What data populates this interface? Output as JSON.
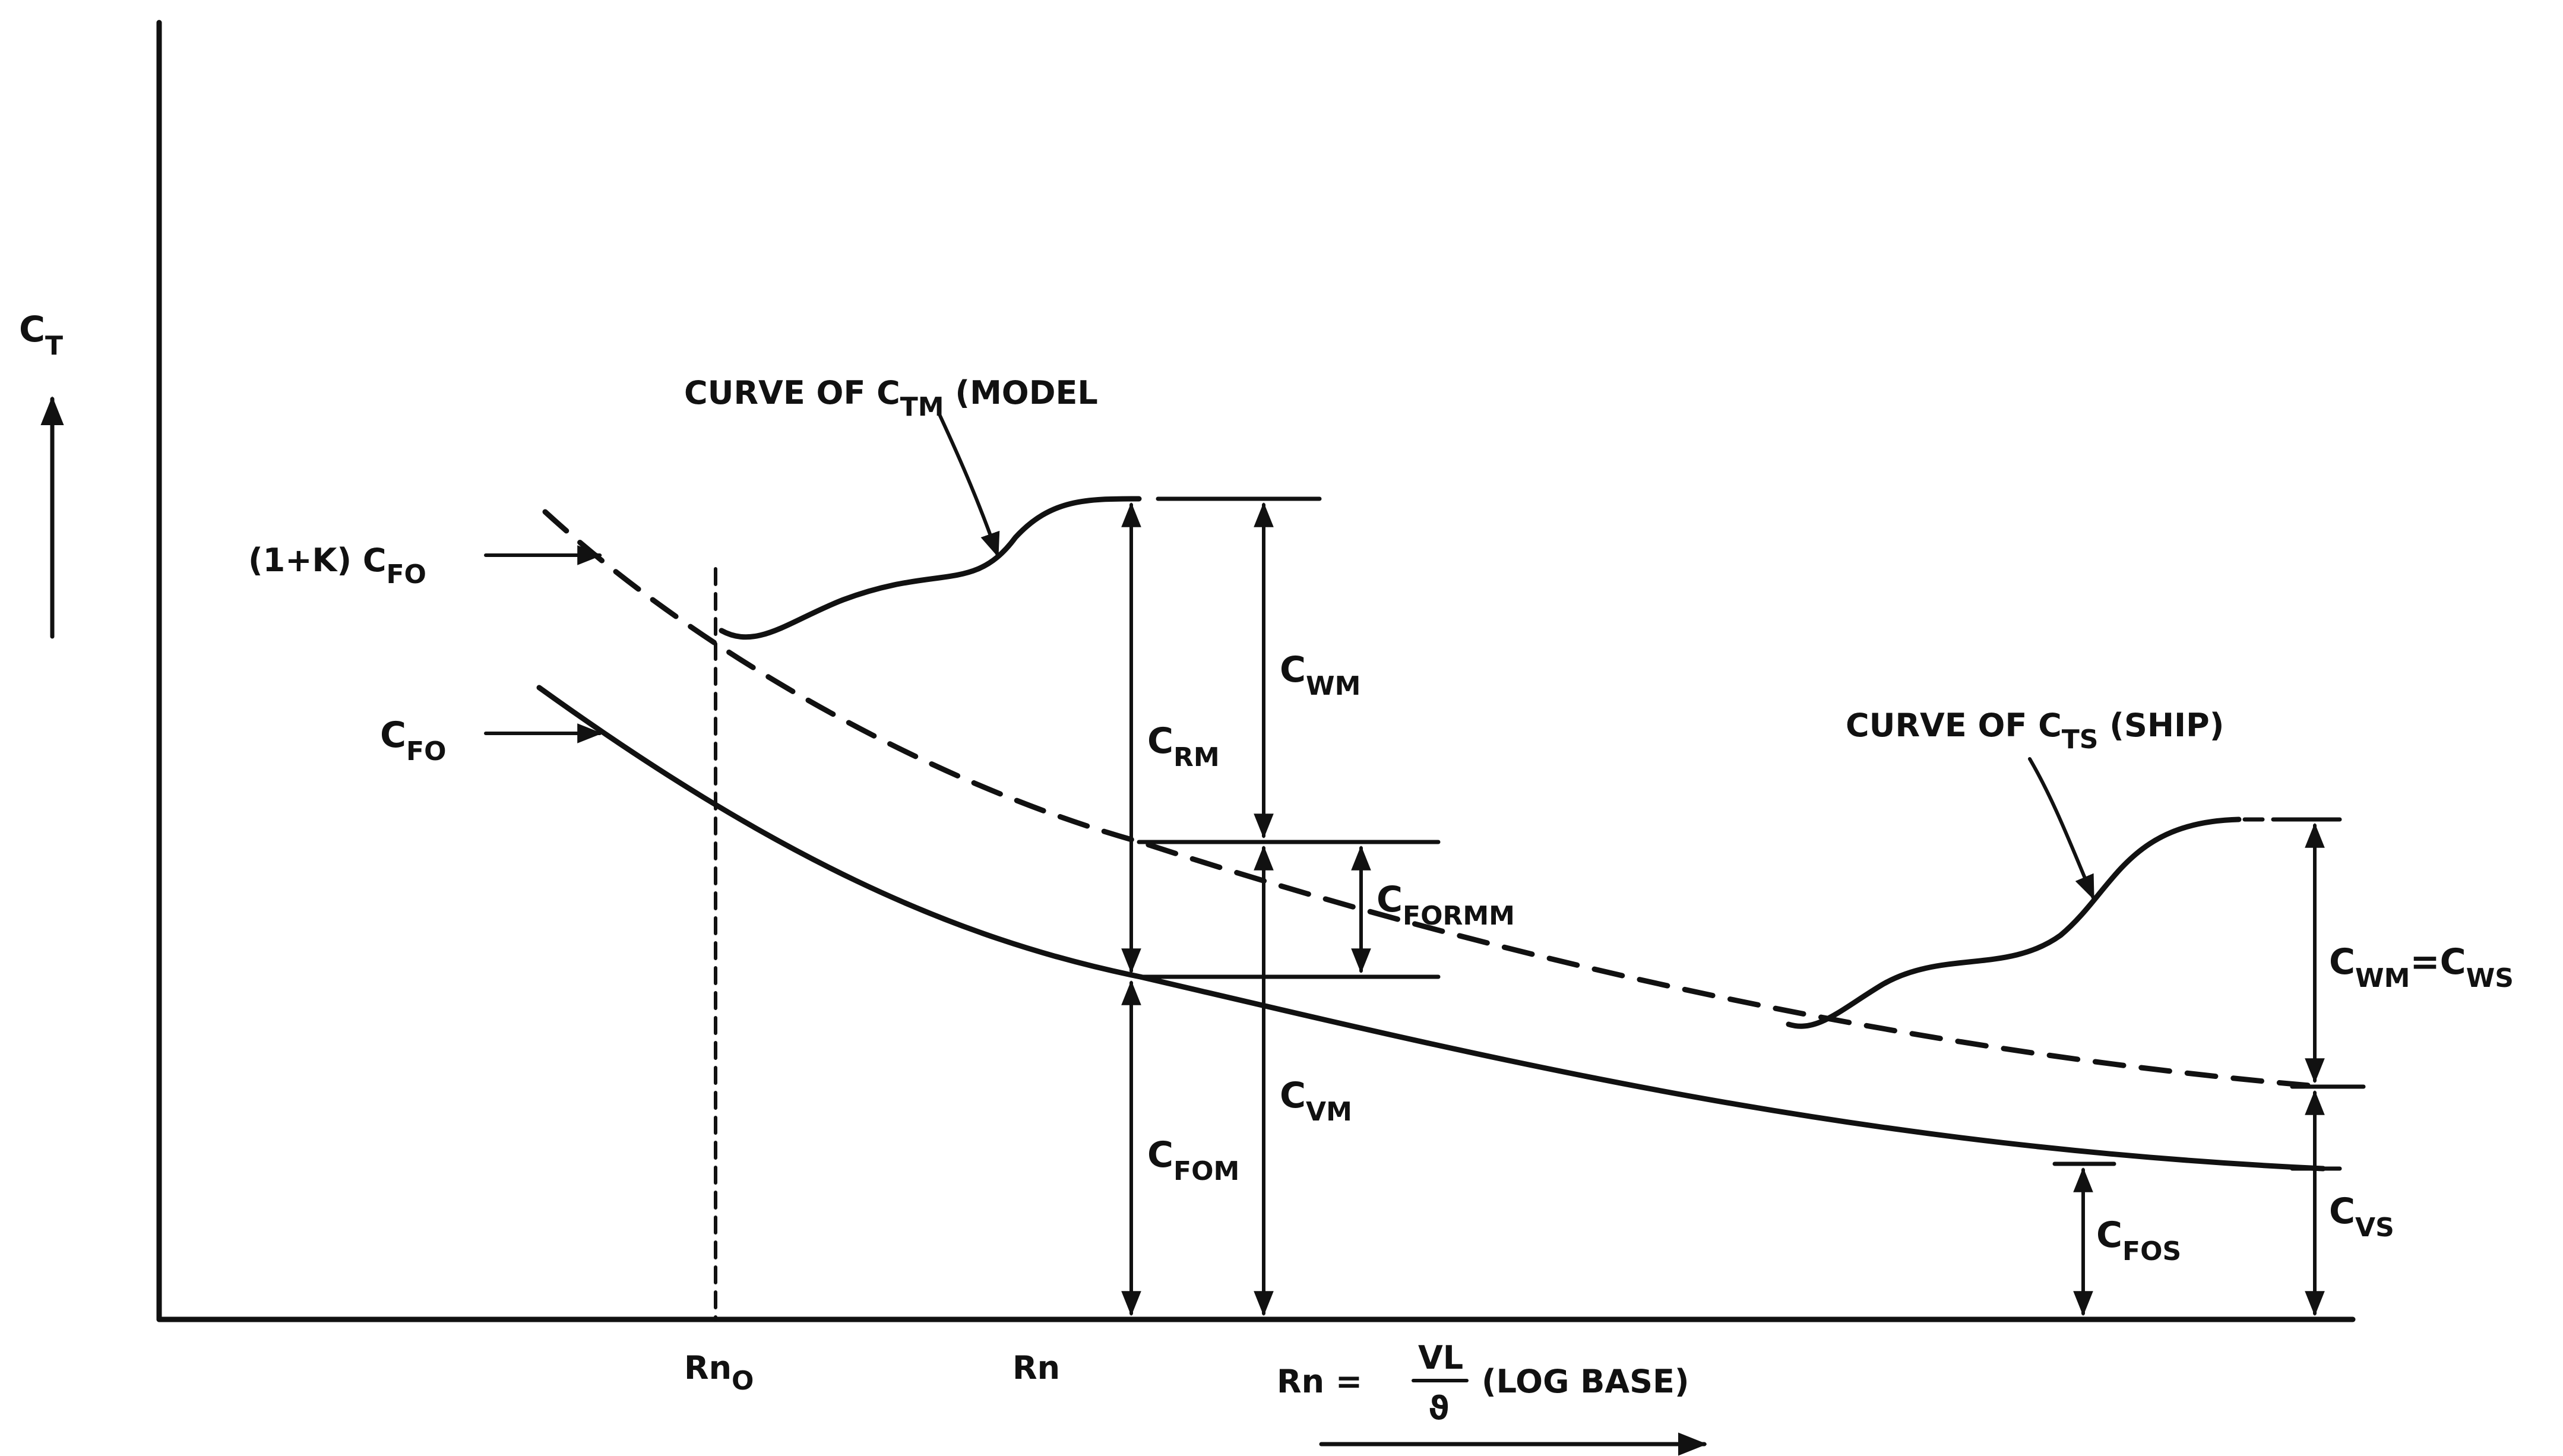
{
  "axes": {
    "y_label": "C",
    "y_label_sub": "T",
    "x_label_prefix": "Rn =",
    "x_label_num": "VL",
    "x_label_den": "ϑ",
    "x_label_suffix": "(LOG BASE)"
  },
  "ticks": {
    "rn0": "Rn",
    "rn0_sub": "O",
    "rn": "Rn"
  },
  "curves": {
    "ctm_caption": "CURVE OF C",
    "ctm_caption_sub": "TM",
    "ctm_caption_tail": "(MODEL",
    "cts_caption": "CURVE OF C",
    "cts_caption_sub": "TS",
    "cts_caption_tail": "(SHIP)",
    "k_cfo_prefix": "(1+K) C",
    "k_cfo_sub": "FO",
    "cfo": "C",
    "cfo_sub": "FO"
  },
  "components": {
    "cwm": "C",
    "cwm_sub": "WM",
    "crm": "C",
    "crm_sub": "RM",
    "cformm": "C",
    "cformm_sub": "FORMM",
    "cvm": "C",
    "cvm_sub": "VM",
    "cfom": "C",
    "cfom_sub": "FOM",
    "cwm_cws_a": "C",
    "cwm_cws_a_sub": "WM",
    "cwm_cws_eq": "=",
    "cwm_cws_b": "C",
    "cwm_cws_b_sub": "WS",
    "cvs": "C",
    "cvs_sub": "VS",
    "cfos": "C",
    "cfos_sub": "FOS"
  },
  "colors": {
    "ink": "#111111",
    "paper": "#ffffff"
  }
}
